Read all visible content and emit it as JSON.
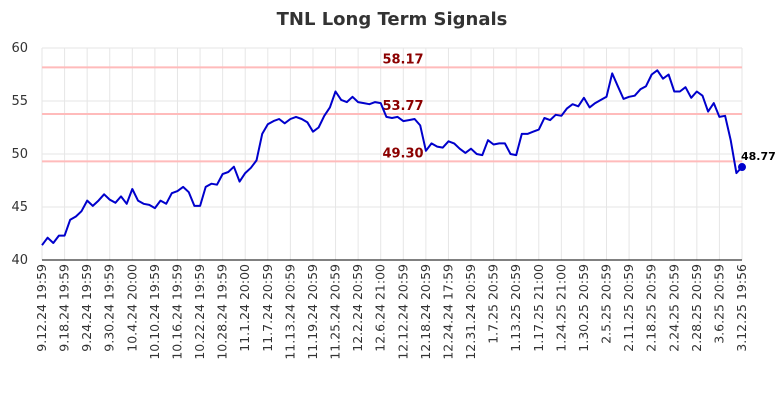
{
  "chart_data": {
    "type": "line",
    "title": "TNL Long Term Signals",
    "xlabel": "",
    "ylabel": "",
    "ylim": [
      40,
      60
    ],
    "yticks": [
      40,
      45,
      50,
      55,
      60
    ],
    "grid": true,
    "colors": {
      "line": "#0000cc",
      "level_line": "#ffbbbb",
      "level_text": "#8b0000",
      "grid": "#e6e6e6"
    },
    "levels": [
      {
        "value": 58.17,
        "label": "58.17"
      },
      {
        "value": 53.77,
        "label": "53.77"
      },
      {
        "value": 49.3,
        "label": "49.30"
      }
    ],
    "xtick_labels": [
      "9.12.24 19:59",
      "9.18.24 19:59",
      "9.24.24 19:59",
      "9.30.24 19:59",
      "10.4.24 20:00",
      "10.10.24 19:59",
      "10.16.24 19:59",
      "10.22.24 19:59",
      "10.28.24 19:59",
      "11.1.24 20:00",
      "11.7.24 20:59",
      "11.13.24 20:59",
      "11.19.24 20:59",
      "11.25.24 20:59",
      "12.2.24 20:59",
      "12.6.24 21:00",
      "12.12.24 20:59",
      "12.18.24 20:59",
      "12.24.24 17:59",
      "12.31.24 20:59",
      "1.7.25 20:59",
      "1.13.25 20:59",
      "1.17.25 21:00",
      "1.24.25 21:00",
      "1.30.25 20:59",
      "2.5.25 20:59",
      "2.11.25 20:59",
      "2.18.25 20:59",
      "2.24.25 20:59",
      "2.28.25 20:59",
      "3.6.25 20:59",
      "3.12.25 19:56"
    ],
    "last_value_label": "48.77",
    "series": [
      {
        "values": [
          41.4,
          42.1,
          41.6,
          42.3,
          42.3,
          43.8,
          44.1,
          44.6,
          45.6,
          45.1,
          45.6,
          46.2,
          45.7,
          45.4,
          46.0,
          45.3,
          46.7,
          45.6,
          45.3,
          45.2,
          44.9,
          45.6,
          45.3,
          46.3,
          46.5,
          46.9,
          46.4,
          45.1,
          45.1,
          46.9,
          47.2,
          47.1,
          48.1,
          48.3,
          48.8,
          47.4,
          48.2,
          48.7,
          49.4,
          51.9,
          52.8,
          53.1,
          53.3,
          52.9,
          53.3,
          53.5,
          53.3,
          53.0,
          52.1,
          52.5,
          53.6,
          54.4,
          55.9,
          55.1,
          54.9,
          55.4,
          54.9,
          54.8,
          54.7,
          54.9,
          54.8,
          53.5,
          53.4,
          53.5,
          53.1,
          53.2,
          53.3,
          52.7,
          50.3,
          51.0,
          50.7,
          50.6,
          51.2,
          51.0,
          50.5,
          50.1,
          50.5,
          50.0,
          49.9,
          51.3,
          50.9,
          51.0,
          51.0,
          50.0,
          49.9,
          51.9,
          51.9,
          52.1,
          52.3,
          53.4,
          53.2,
          53.7,
          53.6,
          54.3,
          54.7,
          54.5,
          55.3,
          54.4,
          54.8,
          55.1,
          55.4,
          57.6,
          56.4,
          55.2,
          55.4,
          55.5,
          56.1,
          56.4,
          57.5,
          57.9,
          57.1,
          57.5,
          55.9,
          55.9,
          56.3,
          55.3,
          55.9,
          55.5,
          54.0,
          54.8,
          53.5,
          53.6,
          51.3,
          48.2,
          48.77
        ]
      }
    ]
  }
}
